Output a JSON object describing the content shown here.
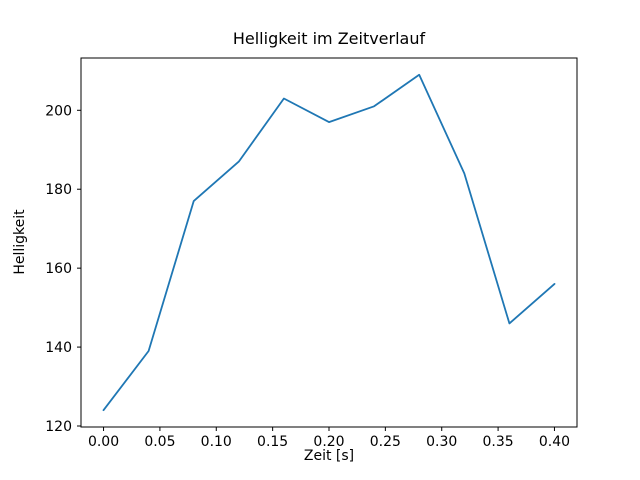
{
  "chart_data": {
    "type": "line",
    "title": "Helligkeit im Zeitverlauf",
    "xlabel": "Zeit [s]",
    "ylabel": "Helligkeit",
    "x": [
      0.0,
      0.04,
      0.08,
      0.12,
      0.16,
      0.2,
      0.24,
      0.28,
      0.32,
      0.36,
      0.4
    ],
    "y": [
      124,
      139,
      177,
      187,
      203,
      197,
      201,
      209,
      184,
      146,
      156
    ],
    "xlim": [
      -0.02,
      0.42
    ],
    "ylim": [
      119.75,
      213.25
    ],
    "xticks": [
      0.0,
      0.05,
      0.1,
      0.15,
      0.2,
      0.25,
      0.3,
      0.35,
      0.4
    ],
    "xtick_labels": [
      "0.00",
      "0.05",
      "0.10",
      "0.15",
      "0.20",
      "0.25",
      "0.30",
      "0.35",
      "0.40"
    ],
    "yticks": [
      120,
      140,
      160,
      180,
      200
    ],
    "ytick_labels": [
      "120",
      "140",
      "160",
      "180",
      "200"
    ],
    "line_color": "#1f77b4",
    "axes_color": "#000000",
    "background_color": "#ffffff",
    "grid": false,
    "legend": null
  }
}
